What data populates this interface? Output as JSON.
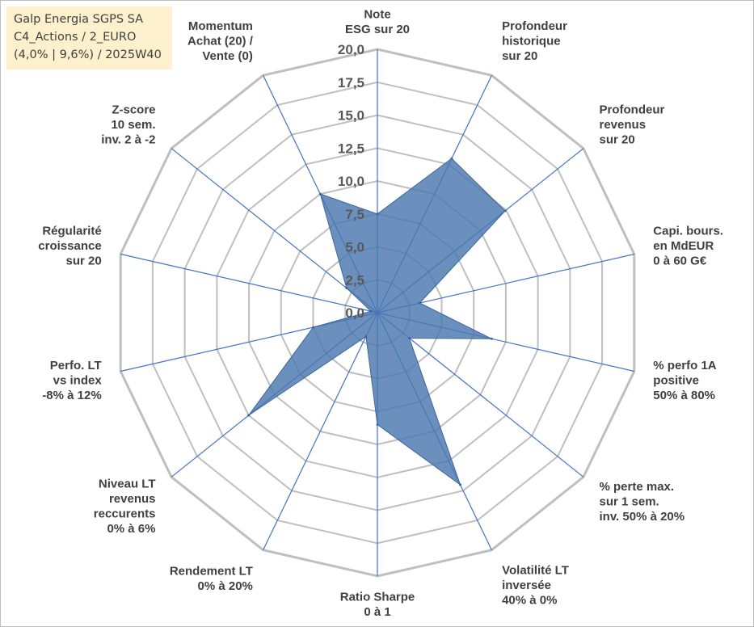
{
  "info": {
    "company": "Galp Energia SGPS SA",
    "category": "C4_Actions / 2_EURO",
    "params": "(4,0% | 9,6%) / 2025W40"
  },
  "colors": {
    "fill": "#4a78b0",
    "axis": "#4472c4",
    "grid": "#bfbfbf",
    "text": "#404040"
  },
  "chart_data": {
    "type": "radar",
    "rmin": 0,
    "rmax": 20,
    "tick_step": 2.5,
    "tick_labels": [
      "0,0",
      "2,5",
      "5,0",
      "7,5",
      "10,0",
      "12,5",
      "15,0",
      "17,5",
      "20,0"
    ],
    "axes": [
      {
        "label": [
          "Note",
          "ESG sur 20"
        ],
        "value": 7.5
      },
      {
        "label": [
          "Profondeur",
          "historique",
          "sur 20"
        ],
        "value": 13.0
      },
      {
        "label": [
          "Profondeur",
          "revenus",
          "sur 20"
        ],
        "value": 12.4
      },
      {
        "label": [
          "Capi. bours.",
          "en MdEUR",
          "0 à 60 G€"
        ],
        "value": 3.3
      },
      {
        "label": [
          "% perfo 1A",
          "positive",
          "50% à 80%"
        ],
        "value": 8.9
      },
      {
        "label": [
          "% perte max.",
          "sur 1 sem.",
          "inv. 50% à 20%"
        ],
        "value": 3.1
      },
      {
        "label": [
          "Volatilité LT",
          "inversée",
          "40% à 0%"
        ],
        "value": 14.5
      },
      {
        "label": [
          "Ratio Sharpe",
          "0 à 1"
        ],
        "value": 8.5
      },
      {
        "label": [
          "Rendement LT",
          "0% à 20%"
        ],
        "value": 2.0
      },
      {
        "label": [
          "Niveau LT",
          "revenus",
          "reccurents",
          "0% à 6%"
        ],
        "value": 12.5
      },
      {
        "label": [
          "Perfo. LT",
          "vs index",
          "-8% à 12%"
        ],
        "value": 5.0
      },
      {
        "label": [
          "Régularité",
          "croissance",
          "sur 20"
        ],
        "value": 0.5
      },
      {
        "label": [
          "Z-score",
          "10 sem.",
          "inv. 2 à -2"
        ],
        "value": 3.0
      },
      {
        "label": [
          "Momentum",
          "Achat (20) /",
          "Vente (0)"
        ],
        "value": 10.0
      }
    ]
  }
}
